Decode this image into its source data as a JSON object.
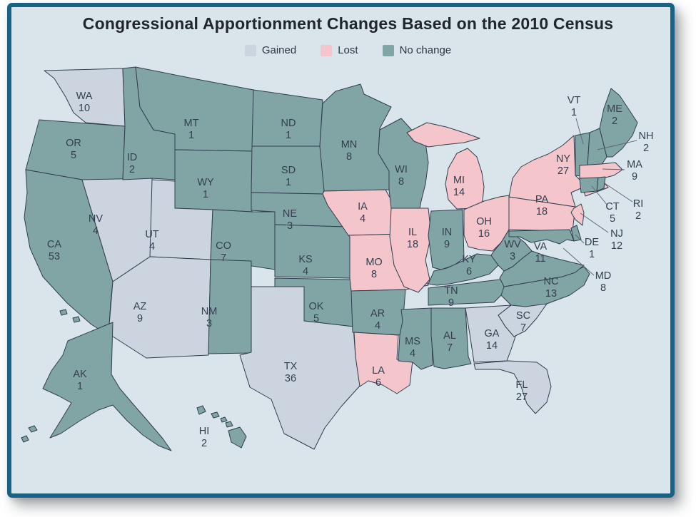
{
  "title": "Congressional Apportionment Changes Based on the 2010 Census",
  "legend": [
    {
      "label": "Gained",
      "key": "gained"
    },
    {
      "label": "Lost",
      "key": "lost"
    },
    {
      "label": "No change",
      "key": "no_change"
    }
  ],
  "colors": {
    "gained": "#ccd4e0",
    "lost": "#f5c5cc",
    "no_change": "#81a5a5",
    "background": "#d9e5ea",
    "frame_border": "#1a6284",
    "state_outline": "#2f3e4e",
    "label_text": "#333f4e",
    "callout_line": "#5a6470"
  },
  "states": [
    {
      "abbr": "WA",
      "seats": 10,
      "status": "gained"
    },
    {
      "abbr": "OR",
      "seats": 5,
      "status": "no_change"
    },
    {
      "abbr": "CA",
      "seats": 53,
      "status": "no_change"
    },
    {
      "abbr": "NV",
      "seats": 4,
      "status": "gained"
    },
    {
      "abbr": "ID",
      "seats": 2,
      "status": "no_change"
    },
    {
      "abbr": "MT",
      "seats": 1,
      "status": "no_change"
    },
    {
      "abbr": "WY",
      "seats": 1,
      "status": "no_change"
    },
    {
      "abbr": "UT",
      "seats": 4,
      "status": "gained"
    },
    {
      "abbr": "CO",
      "seats": 7,
      "status": "no_change"
    },
    {
      "abbr": "AZ",
      "seats": 9,
      "status": "gained"
    },
    {
      "abbr": "NM",
      "seats": 3,
      "status": "no_change"
    },
    {
      "abbr": "ND",
      "seats": 1,
      "status": "no_change"
    },
    {
      "abbr": "SD",
      "seats": 1,
      "status": "no_change"
    },
    {
      "abbr": "NE",
      "seats": 3,
      "status": "no_change"
    },
    {
      "abbr": "KS",
      "seats": 4,
      "status": "no_change"
    },
    {
      "abbr": "OK",
      "seats": 5,
      "status": "no_change"
    },
    {
      "abbr": "TX",
      "seats": 36,
      "status": "gained"
    },
    {
      "abbr": "MN",
      "seats": 8,
      "status": "no_change"
    },
    {
      "abbr": "IA",
      "seats": 4,
      "status": "lost"
    },
    {
      "abbr": "MO",
      "seats": 8,
      "status": "lost"
    },
    {
      "abbr": "AR",
      "seats": 4,
      "status": "no_change"
    },
    {
      "abbr": "LA",
      "seats": 6,
      "status": "lost"
    },
    {
      "abbr": "WI",
      "seats": 8,
      "status": "no_change"
    },
    {
      "abbr": "IL",
      "seats": 18,
      "status": "lost"
    },
    {
      "abbr": "MI",
      "seats": 14,
      "status": "lost"
    },
    {
      "abbr": "IN",
      "seats": 9,
      "status": "no_change"
    },
    {
      "abbr": "OH",
      "seats": 16,
      "status": "lost"
    },
    {
      "abbr": "KY",
      "seats": 6,
      "status": "no_change"
    },
    {
      "abbr": "TN",
      "seats": 9,
      "status": "no_change"
    },
    {
      "abbr": "MS",
      "seats": 4,
      "status": "no_change"
    },
    {
      "abbr": "AL",
      "seats": 7,
      "status": "no_change"
    },
    {
      "abbr": "GA",
      "seats": 14,
      "status": "gained"
    },
    {
      "abbr": "SC",
      "seats": 7,
      "status": "gained"
    },
    {
      "abbr": "FL",
      "seats": 27,
      "status": "gained"
    },
    {
      "abbr": "NC",
      "seats": 13,
      "status": "no_change"
    },
    {
      "abbr": "VA",
      "seats": 11,
      "status": "no_change"
    },
    {
      "abbr": "WV",
      "seats": 3,
      "status": "no_change"
    },
    {
      "abbr": "PA",
      "seats": 18,
      "status": "lost"
    },
    {
      "abbr": "NY",
      "seats": 27,
      "status": "lost"
    },
    {
      "abbr": "NJ",
      "seats": 12,
      "status": "lost"
    },
    {
      "abbr": "DE",
      "seats": 1,
      "status": "no_change"
    },
    {
      "abbr": "MD",
      "seats": 8,
      "status": "no_change"
    },
    {
      "abbr": "VT",
      "seats": 1,
      "status": "no_change"
    },
    {
      "abbr": "NH",
      "seats": 2,
      "status": "no_change"
    },
    {
      "abbr": "ME",
      "seats": 2,
      "status": "no_change"
    },
    {
      "abbr": "MA",
      "seats": 9,
      "status": "lost"
    },
    {
      "abbr": "CT",
      "seats": 5,
      "status": "no_change"
    },
    {
      "abbr": "RI",
      "seats": 2,
      "status": "no_change"
    },
    {
      "abbr": "AK",
      "seats": 1,
      "status": "no_change"
    },
    {
      "abbr": "HI",
      "seats": 2,
      "status": "no_change"
    }
  ]
}
